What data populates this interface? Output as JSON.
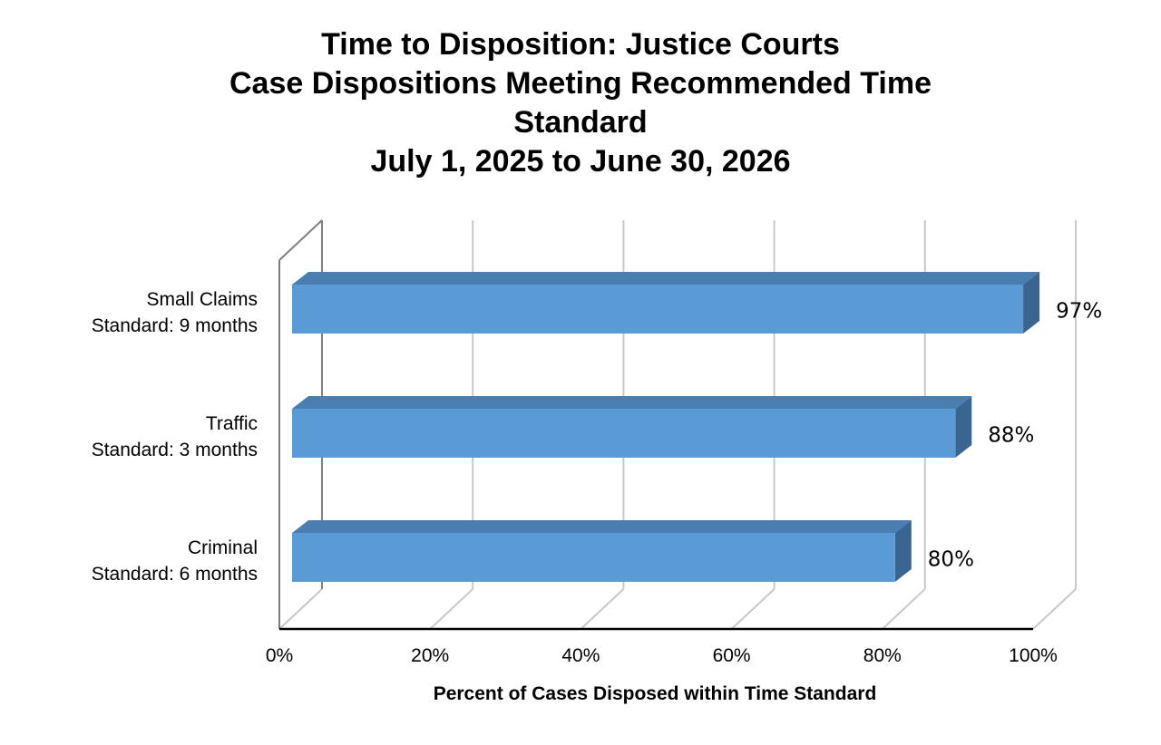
{
  "chart_data": {
    "type": "bar",
    "orientation": "horizontal",
    "style": "3d",
    "title_lines": [
      "Time to Disposition: Justice Courts",
      "Case Dispositions Meeting Recommended Time",
      "Standard",
      "July 1, 2025 to June 30, 2026"
    ],
    "categories": [
      [
        "Small Claims",
        "Standard: 9 months"
      ],
      [
        "Traffic",
        "Standard: 3 months"
      ],
      [
        "Criminal",
        "Standard: 6 months"
      ]
    ],
    "values": [
      97,
      88,
      80
    ],
    "data_labels": [
      "97%",
      "88%",
      "80%"
    ],
    "x_ticks": [
      "0%",
      "20%",
      "40%",
      "60%",
      "80%",
      "100%"
    ],
    "xlim": [
      0,
      100
    ],
    "xlabel": "Percent of Cases Disposed within Time Standard",
    "ylabel": "",
    "grid": true,
    "legend": "none",
    "colors": {
      "bar_front": "#5b9bd5",
      "bar_top": "#4a7eb0",
      "bar_side": "#3b6591",
      "grid": "#c8c8c8",
      "axis": "#000000",
      "back_wall_edge": "#7f7f7f"
    }
  }
}
